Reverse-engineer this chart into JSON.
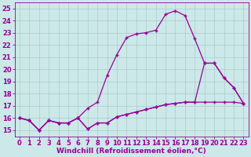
{
  "background_color": "#cce8e8",
  "grid_color": "#aacccc",
  "line_color": "#990099",
  "marker": "+",
  "markersize": 3.5,
  "linewidth": 0.9,
  "xlabel": "Windchill (Refroidissement éolien,°C)",
  "xlabel_fontsize": 6.5,
  "tick_fontsize": 6.0,
  "ylim": [
    14.5,
    25.5
  ],
  "xlim": [
    -0.5,
    23.5
  ],
  "yticks": [
    15,
    16,
    17,
    18,
    19,
    20,
    21,
    22,
    23,
    24,
    25
  ],
  "xticks": [
    0,
    1,
    2,
    3,
    4,
    5,
    6,
    7,
    8,
    9,
    10,
    11,
    12,
    13,
    14,
    15,
    16,
    17,
    18,
    19,
    20,
    21,
    22,
    23
  ],
  "series1_x": [
    0,
    1,
    2,
    3,
    4,
    5,
    6,
    7,
    8,
    9,
    10,
    11,
    12,
    13,
    14,
    15,
    16,
    17,
    18,
    19,
    20,
    21,
    22,
    23
  ],
  "series1_y": [
    16.0,
    15.8,
    15.0,
    15.8,
    15.6,
    15.6,
    16.0,
    15.1,
    15.6,
    15.6,
    16.1,
    16.3,
    16.5,
    16.7,
    16.9,
    17.1,
    17.2,
    17.3,
    17.3,
    17.3,
    17.3,
    17.3,
    17.3,
    17.2
  ],
  "series2_x": [
    0,
    1,
    2,
    3,
    4,
    5,
    6,
    7,
    8,
    9,
    10,
    11,
    12,
    13,
    14,
    15,
    16,
    17,
    18,
    19,
    20,
    21,
    22,
    23
  ],
  "series2_y": [
    16.0,
    15.8,
    15.0,
    15.8,
    15.6,
    15.6,
    16.0,
    16.8,
    17.3,
    19.5,
    21.2,
    22.6,
    22.9,
    23.0,
    23.2,
    24.5,
    24.8,
    24.4,
    22.5,
    20.5,
    20.5,
    19.3,
    18.5,
    17.2
  ],
  "series3_x": [
    0,
    1,
    2,
    3,
    4,
    5,
    6,
    7,
    8,
    9,
    10,
    11,
    12,
    13,
    14,
    15,
    16,
    17,
    18,
    19,
    20,
    21,
    22,
    23
  ],
  "series3_y": [
    16.0,
    15.8,
    15.0,
    15.8,
    15.6,
    15.6,
    16.0,
    15.1,
    15.6,
    15.6,
    16.1,
    16.3,
    16.5,
    16.7,
    16.9,
    17.1,
    17.2,
    17.3,
    17.3,
    20.5,
    20.5,
    19.3,
    18.5,
    17.2
  ]
}
